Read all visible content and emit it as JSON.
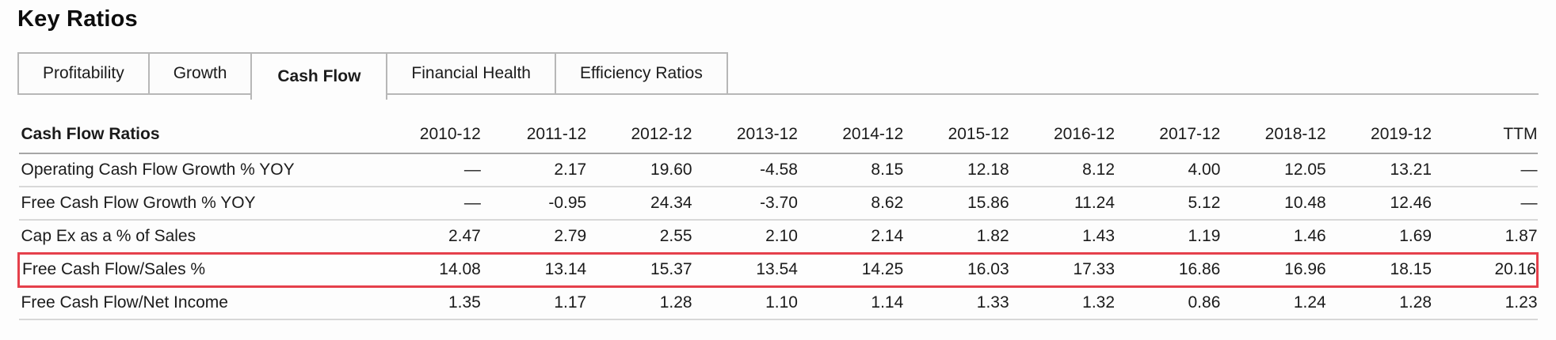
{
  "page": {
    "title": "Key Ratios"
  },
  "tabs": {
    "items": [
      {
        "label": "Profitability",
        "active": false
      },
      {
        "label": "Growth",
        "active": false
      },
      {
        "label": "Cash Flow",
        "active": true
      },
      {
        "label": "Financial Health",
        "active": false
      },
      {
        "label": "Efficiency Ratios",
        "active": false
      }
    ]
  },
  "table": {
    "header_label": "Cash Flow Ratios",
    "columns": [
      "2010-12",
      "2011-12",
      "2012-12",
      "2013-12",
      "2014-12",
      "2015-12",
      "2016-12",
      "2017-12",
      "2018-12",
      "2019-12",
      "TTM"
    ],
    "rows": [
      {
        "label": "Operating Cash Flow Growth % YOY",
        "values": [
          "—",
          "2.17",
          "19.60",
          "-4.58",
          "8.15",
          "12.18",
          "8.12",
          "4.00",
          "12.05",
          "13.21",
          "—"
        ],
        "highlighted": false
      },
      {
        "label": "Free Cash Flow Growth % YOY",
        "values": [
          "—",
          "-0.95",
          "24.34",
          "-3.70",
          "8.62",
          "15.86",
          "11.24",
          "5.12",
          "10.48",
          "12.46",
          "—"
        ],
        "highlighted": false
      },
      {
        "label": "Cap Ex as a % of Sales",
        "values": [
          "2.47",
          "2.79",
          "2.55",
          "2.10",
          "2.14",
          "1.82",
          "1.43",
          "1.19",
          "1.46",
          "1.69",
          "1.87"
        ],
        "highlighted": false
      },
      {
        "label": "Free Cash Flow/Sales %",
        "values": [
          "14.08",
          "13.14",
          "15.37",
          "13.54",
          "14.25",
          "16.03",
          "17.33",
          "16.86",
          "16.96",
          "18.15",
          "20.16"
        ],
        "highlighted": true
      },
      {
        "label": "Free Cash Flow/Net Income",
        "values": [
          "1.35",
          "1.17",
          "1.28",
          "1.10",
          "1.14",
          "1.33",
          "1.32",
          "0.86",
          "1.24",
          "1.28",
          "1.23"
        ],
        "highlighted": false
      }
    ]
  },
  "colors": {
    "highlight_border": "#e5404b",
    "tab_border": "#b7b7b7",
    "header_rule": "#a6a6a6",
    "row_rule": "#d8d8d8",
    "text": "#1b1b1b"
  }
}
